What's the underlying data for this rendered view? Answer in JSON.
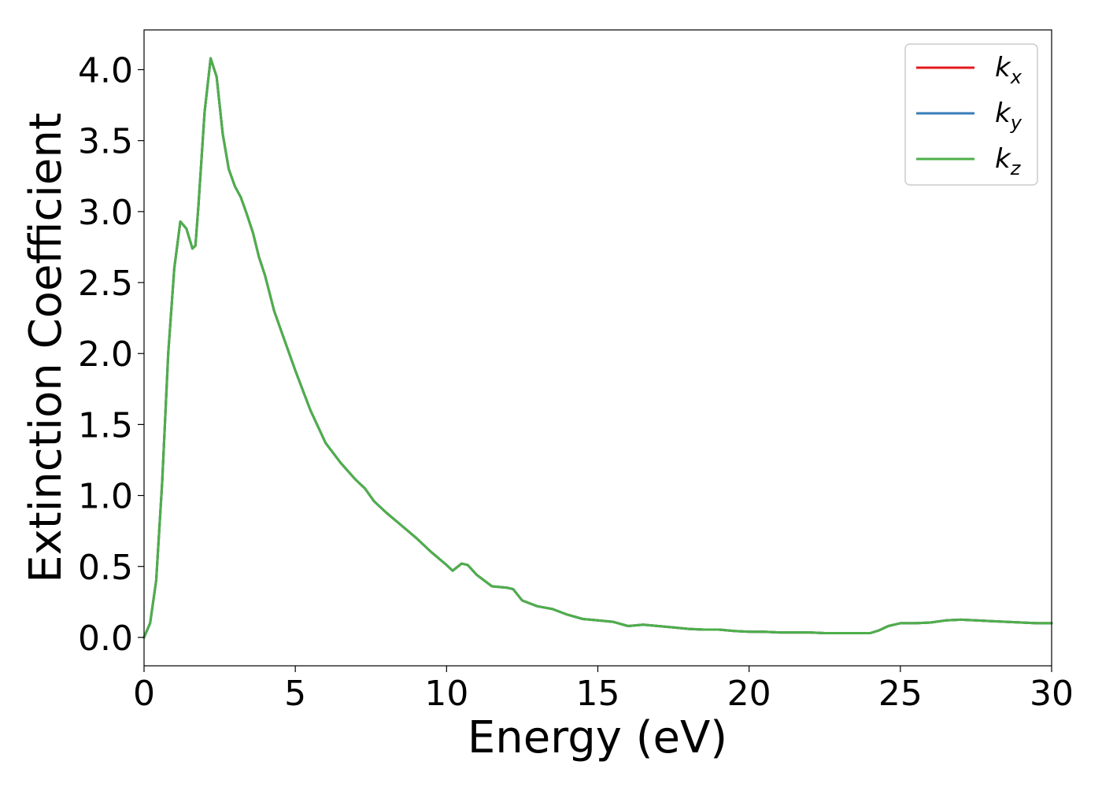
{
  "chart_data": {
    "type": "line",
    "title": "",
    "xlabel": "Energy (eV)",
    "ylabel": "Extinction Coefficient",
    "xlim": [
      0,
      30
    ],
    "ylim": [
      -0.2,
      4.28
    ],
    "xticks": [
      0,
      5,
      10,
      15,
      20,
      25,
      30
    ],
    "xtick_labels": [
      "0",
      "5",
      "10",
      "15",
      "20",
      "25",
      "30"
    ],
    "yticks": [
      0.0,
      0.5,
      1.0,
      1.5,
      2.0,
      2.5,
      3.0,
      3.5,
      4.0
    ],
    "ytick_labels": [
      "0.0",
      "0.5",
      "1.0",
      "1.5",
      "2.0",
      "2.5",
      "3.0",
      "3.5",
      "4.0"
    ],
    "grid": false,
    "legend_position": "top-right",
    "series": [
      {
        "name": "kx",
        "legend_base": "k",
        "legend_sub": "x",
        "color": "#e41a1c",
        "x": [
          0,
          0.2,
          0.4,
          0.6,
          0.8,
          1.0,
          1.2,
          1.4,
          1.6,
          1.7,
          1.8,
          2.0,
          2.2,
          2.4,
          2.6,
          2.8,
          3.0,
          3.2,
          3.4,
          3.6,
          3.8,
          4.0,
          4.3,
          4.6,
          5.0,
          5.5,
          6.0,
          6.5,
          7.0,
          7.3,
          7.6,
          8.0,
          8.5,
          9.0,
          9.5,
          10.0,
          10.2,
          10.5,
          10.7,
          11.0,
          11.5,
          12.0,
          12.2,
          12.5,
          13.0,
          13.5,
          14.0,
          14.5,
          15.0,
          15.5,
          16.0,
          16.5,
          17.0,
          17.5,
          18.0,
          18.5,
          19.0,
          19.5,
          20.0,
          20.5,
          21.0,
          21.5,
          22.0,
          22.5,
          23.0,
          23.5,
          24.0,
          24.3,
          24.6,
          25.0,
          25.5,
          26.0,
          26.5,
          27.0,
          27.5,
          28.0,
          28.5,
          29.0,
          29.5,
          30.0
        ],
        "y": [
          0.0,
          0.1,
          0.4,
          1.1,
          2.0,
          2.6,
          2.93,
          2.88,
          2.74,
          2.76,
          3.05,
          3.7,
          4.08,
          3.95,
          3.55,
          3.3,
          3.18,
          3.1,
          2.98,
          2.85,
          2.68,
          2.55,
          2.3,
          2.12,
          1.88,
          1.6,
          1.37,
          1.23,
          1.11,
          1.05,
          0.96,
          0.88,
          0.79,
          0.7,
          0.6,
          0.51,
          0.47,
          0.52,
          0.51,
          0.44,
          0.36,
          0.35,
          0.34,
          0.26,
          0.22,
          0.2,
          0.16,
          0.13,
          0.12,
          0.11,
          0.08,
          0.09,
          0.08,
          0.07,
          0.06,
          0.055,
          0.055,
          0.045,
          0.04,
          0.04,
          0.035,
          0.035,
          0.035,
          0.03,
          0.03,
          0.03,
          0.03,
          0.05,
          0.08,
          0.1,
          0.1,
          0.105,
          0.12,
          0.125,
          0.12,
          0.115,
          0.11,
          0.105,
          0.1,
          0.1
        ]
      },
      {
        "name": "ky",
        "legend_base": "k",
        "legend_sub": "y",
        "color": "#377eb8",
        "x": [
          0,
          0.2,
          0.4,
          0.6,
          0.8,
          1.0,
          1.2,
          1.4,
          1.6,
          1.7,
          1.8,
          2.0,
          2.2,
          2.4,
          2.6,
          2.8,
          3.0,
          3.2,
          3.4,
          3.6,
          3.8,
          4.0,
          4.3,
          4.6,
          5.0,
          5.5,
          6.0,
          6.5,
          7.0,
          7.3,
          7.6,
          8.0,
          8.5,
          9.0,
          9.5,
          10.0,
          10.2,
          10.5,
          10.7,
          11.0,
          11.5,
          12.0,
          12.2,
          12.5,
          13.0,
          13.5,
          14.0,
          14.5,
          15.0,
          15.5,
          16.0,
          16.5,
          17.0,
          17.5,
          18.0,
          18.5,
          19.0,
          19.5,
          20.0,
          20.5,
          21.0,
          21.5,
          22.0,
          22.5,
          23.0,
          23.5,
          24.0,
          24.3,
          24.6,
          25.0,
          25.5,
          26.0,
          26.5,
          27.0,
          27.5,
          28.0,
          28.5,
          29.0,
          29.5,
          30.0
        ],
        "y": [
          0.0,
          0.1,
          0.4,
          1.1,
          2.0,
          2.6,
          2.93,
          2.88,
          2.74,
          2.76,
          3.05,
          3.7,
          4.08,
          3.95,
          3.55,
          3.3,
          3.18,
          3.1,
          2.98,
          2.85,
          2.68,
          2.55,
          2.3,
          2.12,
          1.88,
          1.6,
          1.37,
          1.23,
          1.11,
          1.05,
          0.96,
          0.88,
          0.79,
          0.7,
          0.6,
          0.51,
          0.47,
          0.52,
          0.51,
          0.44,
          0.36,
          0.35,
          0.34,
          0.26,
          0.22,
          0.2,
          0.16,
          0.13,
          0.12,
          0.11,
          0.08,
          0.09,
          0.08,
          0.07,
          0.06,
          0.055,
          0.055,
          0.045,
          0.04,
          0.04,
          0.035,
          0.035,
          0.035,
          0.03,
          0.03,
          0.03,
          0.03,
          0.05,
          0.08,
          0.1,
          0.1,
          0.105,
          0.12,
          0.125,
          0.12,
          0.115,
          0.11,
          0.105,
          0.1,
          0.1
        ]
      },
      {
        "name": "kz",
        "legend_base": "k",
        "legend_sub": "z",
        "color": "#4daf4a",
        "x": [
          0,
          0.2,
          0.4,
          0.6,
          0.8,
          1.0,
          1.2,
          1.4,
          1.6,
          1.7,
          1.8,
          2.0,
          2.2,
          2.4,
          2.6,
          2.8,
          3.0,
          3.2,
          3.4,
          3.6,
          3.8,
          4.0,
          4.3,
          4.6,
          5.0,
          5.5,
          6.0,
          6.5,
          7.0,
          7.3,
          7.6,
          8.0,
          8.5,
          9.0,
          9.5,
          10.0,
          10.2,
          10.5,
          10.7,
          11.0,
          11.5,
          12.0,
          12.2,
          12.5,
          13.0,
          13.5,
          14.0,
          14.5,
          15.0,
          15.5,
          16.0,
          16.5,
          17.0,
          17.5,
          18.0,
          18.5,
          19.0,
          19.5,
          20.0,
          20.5,
          21.0,
          21.5,
          22.0,
          22.5,
          23.0,
          23.5,
          24.0,
          24.3,
          24.6,
          25.0,
          25.5,
          26.0,
          26.5,
          27.0,
          27.5,
          28.0,
          28.5,
          29.0,
          29.5,
          30.0
        ],
        "y": [
          0.0,
          0.1,
          0.4,
          1.1,
          2.0,
          2.6,
          2.93,
          2.88,
          2.74,
          2.76,
          3.05,
          3.7,
          4.08,
          3.95,
          3.55,
          3.3,
          3.18,
          3.1,
          2.98,
          2.85,
          2.68,
          2.55,
          2.3,
          2.12,
          1.88,
          1.6,
          1.37,
          1.23,
          1.11,
          1.05,
          0.96,
          0.88,
          0.79,
          0.7,
          0.6,
          0.51,
          0.47,
          0.52,
          0.51,
          0.44,
          0.36,
          0.35,
          0.34,
          0.26,
          0.22,
          0.2,
          0.16,
          0.13,
          0.12,
          0.11,
          0.08,
          0.09,
          0.08,
          0.07,
          0.06,
          0.055,
          0.055,
          0.045,
          0.04,
          0.04,
          0.035,
          0.035,
          0.035,
          0.03,
          0.03,
          0.03,
          0.03,
          0.05,
          0.08,
          0.1,
          0.1,
          0.105,
          0.12,
          0.125,
          0.12,
          0.115,
          0.11,
          0.105,
          0.1,
          0.1
        ]
      }
    ]
  }
}
